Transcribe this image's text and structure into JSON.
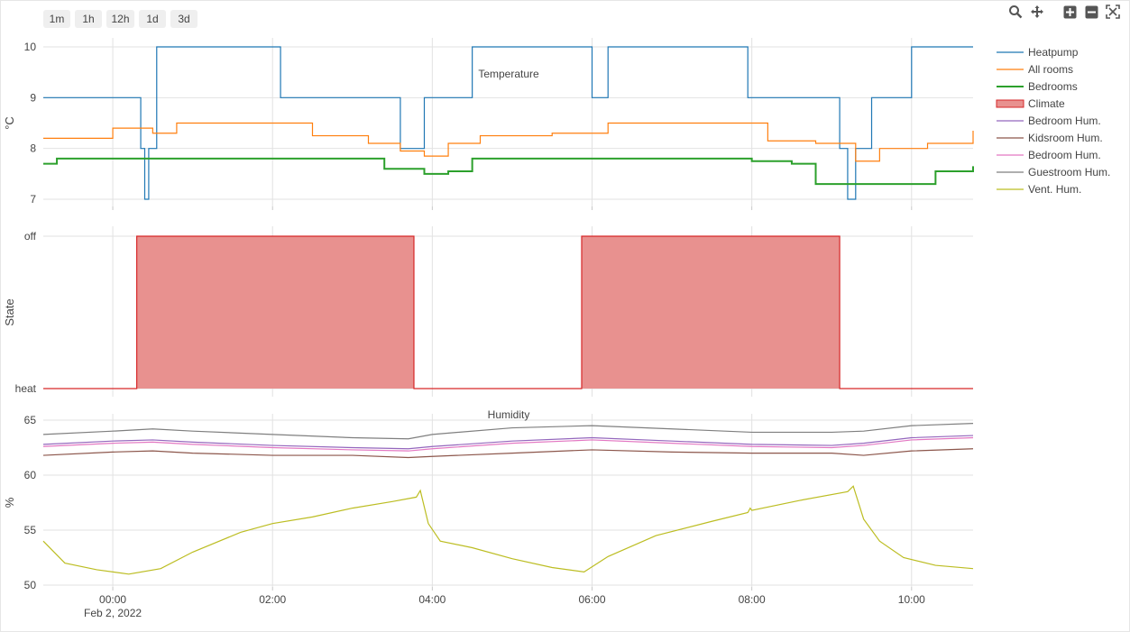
{
  "range_buttons": [
    "1m",
    "1h",
    "12h",
    "1d",
    "3d"
  ],
  "modebar": [
    "zoom-icon",
    "pan-icon",
    "zoom-in-icon",
    "zoom-out-icon",
    "autoscale-icon"
  ],
  "colors": {
    "heatpump": "#1f77b4",
    "all_rooms": "#ff7f0e",
    "bedrooms": "#2ca02c",
    "climate_fill": "#e8918f",
    "climate_line": "#d62728",
    "bedroom_hum_1": "#9467bd",
    "kidsroom_hum": "#8c564b",
    "bedroom_hum_2": "#e377c2",
    "guestroom_hum": "#7f7f7f",
    "vent_hum": "#bcbd22"
  },
  "chart_data": [
    {
      "type": "line",
      "title": "Temperature",
      "ylabel": "°C",
      "ylim": [
        7,
        10
      ],
      "yticks": [
        "7",
        "8",
        "9",
        "10"
      ],
      "xlim_hours": [
        -0.87,
        10.77
      ],
      "series": [
        {
          "name": "Heatpump",
          "note": "oscillates between 8 and 10 with frequent steps, min 7",
          "segments": [
            [
              -0.87,
              9
            ],
            [
              0.3,
              9
            ],
            [
              0.35,
              8
            ],
            [
              0.4,
              7
            ],
            [
              0.45,
              8
            ],
            [
              0.55,
              10
            ],
            [
              2.0,
              10
            ],
            [
              2.1,
              9
            ],
            [
              3.5,
              9
            ],
            [
              3.6,
              8
            ],
            [
              3.85,
              8
            ],
            [
              3.9,
              9
            ],
            [
              4.3,
              9
            ],
            [
              4.5,
              10
            ],
            [
              6.0,
              9
            ],
            [
              6.2,
              10
            ],
            [
              7.8,
              10
            ],
            [
              7.95,
              9
            ],
            [
              9.0,
              9
            ],
            [
              9.1,
              8
            ],
            [
              9.2,
              7
            ],
            [
              9.3,
              8
            ],
            [
              9.5,
              9
            ],
            [
              10.0,
              10
            ],
            [
              10.77,
              10
            ]
          ]
        },
        {
          "name": "All rooms",
          "note": "around 8.2 to 8.5",
          "points": [
            [
              -0.87,
              8.2
            ],
            [
              0.0,
              8.4
            ],
            [
              0.5,
              8.3
            ],
            [
              0.8,
              8.5
            ],
            [
              2.0,
              8.5
            ],
            [
              2.5,
              8.25
            ],
            [
              3.2,
              8.1
            ],
            [
              3.6,
              7.95
            ],
            [
              3.9,
              7.85
            ],
            [
              4.2,
              8.1
            ],
            [
              4.6,
              8.25
            ],
            [
              5.5,
              8.3
            ],
            [
              6.2,
              8.5
            ],
            [
              7.9,
              8.5
            ],
            [
              8.2,
              8.15
            ],
            [
              8.8,
              8.1
            ],
            [
              9.3,
              7.75
            ],
            [
              9.6,
              8.0
            ],
            [
              10.2,
              8.1
            ],
            [
              10.77,
              8.35
            ]
          ]
        },
        {
          "name": "Bedrooms",
          "note": "around 7.3 to 7.8",
          "points": [
            [
              -0.87,
              7.7
            ],
            [
              -0.7,
              7.8
            ],
            [
              2.0,
              7.8
            ],
            [
              3.2,
              7.8
            ],
            [
              3.4,
              7.6
            ],
            [
              3.9,
              7.5
            ],
            [
              4.2,
              7.55
            ],
            [
              4.5,
              7.8
            ],
            [
              7.0,
              7.8
            ],
            [
              8.0,
              7.75
            ],
            [
              8.5,
              7.7
            ],
            [
              8.7,
              7.7
            ],
            [
              8.8,
              7.3
            ],
            [
              10.0,
              7.3
            ],
            [
              10.3,
              7.55
            ],
            [
              10.77,
              7.65
            ]
          ]
        }
      ]
    },
    {
      "type": "area",
      "title": "",
      "ylabel": "State",
      "categories": [
        "heat",
        "off"
      ],
      "series": [
        {
          "name": "Climate",
          "note": "step function: heat=0, off=1",
          "points": [
            [
              -0.87,
              0
            ],
            [
              0.3,
              0
            ],
            [
              0.3,
              1
            ],
            [
              3.77,
              1
            ],
            [
              3.77,
              0
            ],
            [
              5.87,
              0
            ],
            [
              5.87,
              1
            ],
            [
              9.1,
              1
            ],
            [
              9.1,
              0
            ],
            [
              10.77,
              0
            ]
          ]
        }
      ]
    },
    {
      "type": "line",
      "title": "Humidity",
      "ylabel": "%",
      "ylim": [
        50,
        65
      ],
      "yticks": [
        "50",
        "55",
        "60",
        "65"
      ],
      "series": [
        {
          "name": "Bedroom Hum.",
          "points": [
            [
              -0.87,
              62.8
            ],
            [
              0.0,
              63.1
            ],
            [
              0.5,
              63.2
            ],
            [
              1.0,
              63.0
            ],
            [
              2.0,
              62.7
            ],
            [
              3.0,
              62.5
            ],
            [
              3.7,
              62.4
            ],
            [
              4.0,
              62.6
            ],
            [
              5.0,
              63.1
            ],
            [
              6.0,
              63.4
            ],
            [
              7.0,
              63.1
            ],
            [
              8.0,
              62.8
            ],
            [
              9.0,
              62.7
            ],
            [
              9.4,
              62.9
            ],
            [
              10.0,
              63.4
            ],
            [
              10.77,
              63.6
            ]
          ]
        },
        {
          "name": "Kidsroom Hum.",
          "points": [
            [
              -0.87,
              61.8
            ],
            [
              0.0,
              62.1
            ],
            [
              0.5,
              62.2
            ],
            [
              1.0,
              62.0
            ],
            [
              2.0,
              61.8
            ],
            [
              3.0,
              61.8
            ],
            [
              3.7,
              61.6
            ],
            [
              4.0,
              61.7
            ],
            [
              5.0,
              62.0
            ],
            [
              6.0,
              62.3
            ],
            [
              7.0,
              62.1
            ],
            [
              8.0,
              62.0
            ],
            [
              9.0,
              62.0
            ],
            [
              9.4,
              61.8
            ],
            [
              10.0,
              62.2
            ],
            [
              10.77,
              62.4
            ]
          ]
        },
        {
          "name": "Bedroom Hum.",
          "points": [
            [
              -0.87,
              62.6
            ],
            [
              0.0,
              62.9
            ],
            [
              0.5,
              63.0
            ],
            [
              1.0,
              62.8
            ],
            [
              2.0,
              62.5
            ],
            [
              3.0,
              62.3
            ],
            [
              3.7,
              62.2
            ],
            [
              4.0,
              62.4
            ],
            [
              5.0,
              62.9
            ],
            [
              6.0,
              63.2
            ],
            [
              7.0,
              62.9
            ],
            [
              8.0,
              62.6
            ],
            [
              9.0,
              62.5
            ],
            [
              9.4,
              62.7
            ],
            [
              10.0,
              63.2
            ],
            [
              10.77,
              63.4
            ]
          ]
        },
        {
          "name": "Guestroom Hum.",
          "points": [
            [
              -0.87,
              63.7
            ],
            [
              0.0,
              64.0
            ],
            [
              0.5,
              64.2
            ],
            [
              1.0,
              64.0
            ],
            [
              2.0,
              63.7
            ],
            [
              3.0,
              63.4
            ],
            [
              3.7,
              63.3
            ],
            [
              4.0,
              63.7
            ],
            [
              5.0,
              64.3
            ],
            [
              6.0,
              64.5
            ],
            [
              7.0,
              64.2
            ],
            [
              8.0,
              63.9
            ],
            [
              9.0,
              63.9
            ],
            [
              9.4,
              64.0
            ],
            [
              10.0,
              64.5
            ],
            [
              10.77,
              64.7
            ]
          ]
        },
        {
          "name": "Vent. Hum.",
          "points": [
            [
              -0.87,
              54.0
            ],
            [
              -0.6,
              52.0
            ],
            [
              -0.2,
              51.4
            ],
            [
              0.2,
              51.0
            ],
            [
              0.6,
              51.5
            ],
            [
              1.0,
              53.0
            ],
            [
              1.6,
              54.8
            ],
            [
              2.0,
              55.6
            ],
            [
              2.5,
              56.2
            ],
            [
              3.0,
              57.0
            ],
            [
              3.5,
              57.6
            ],
            [
              3.8,
              58.0
            ],
            [
              3.85,
              58.6
            ],
            [
              3.95,
              55.6
            ],
            [
              4.1,
              54.0
            ],
            [
              4.5,
              53.4
            ],
            [
              5.0,
              52.4
            ],
            [
              5.5,
              51.6
            ],
            [
              5.9,
              51.2
            ],
            [
              6.2,
              52.6
            ],
            [
              6.8,
              54.5
            ],
            [
              7.5,
              55.8
            ],
            [
              7.95,
              56.6
            ],
            [
              7.98,
              57.0
            ],
            [
              8.0,
              56.8
            ],
            [
              8.6,
              57.7
            ],
            [
              9.2,
              58.5
            ],
            [
              9.27,
              59.0
            ],
            [
              9.4,
              56.0
            ],
            [
              9.6,
              54.0
            ],
            [
              9.9,
              52.5
            ],
            [
              10.3,
              51.8
            ],
            [
              10.77,
              51.5
            ]
          ]
        }
      ]
    }
  ],
  "xaxis": {
    "ticks": [
      "00:00",
      "02:00",
      "04:00",
      "06:00",
      "08:00",
      "10:00"
    ],
    "tick_hours": [
      0,
      2,
      4,
      6,
      8,
      10
    ],
    "date_label": "Feb 2, 2022"
  },
  "legend": [
    "Heatpump",
    "All rooms",
    "Bedrooms",
    "Climate",
    "Bedroom Hum.",
    "Kidsroom Hum.",
    "Bedroom Hum.",
    "Guestroom Hum.",
    "Vent. Hum."
  ]
}
